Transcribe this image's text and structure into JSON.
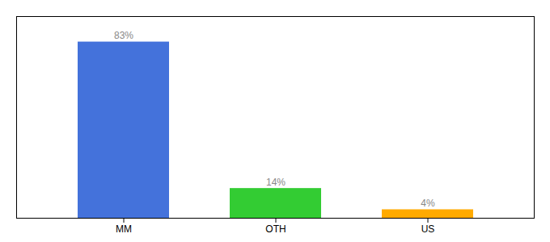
{
  "chart_data": {
    "type": "bar",
    "categories": [
      "MM",
      "OTH",
      "US"
    ],
    "values": [
      83,
      14,
      4
    ],
    "value_labels": [
      "83%",
      "14%",
      "4%"
    ],
    "colors": [
      "#4472db",
      "#33cc33",
      "#ffaa00"
    ],
    "ylim": [
      0,
      95
    ],
    "data_labels": true,
    "tick_labels": "x",
    "grid": false
  }
}
